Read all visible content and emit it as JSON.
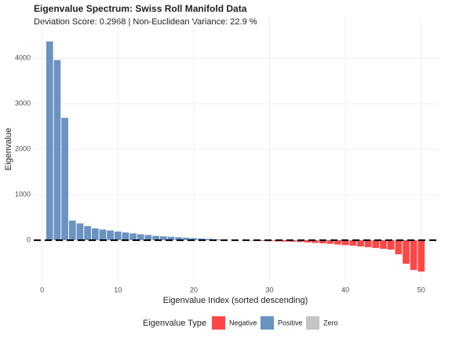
{
  "chart_data": {
    "type": "bar",
    "title": "Eigenvalue Spectrum: Swiss Roll Manifold Data",
    "subtitle": "Deviation Score: 0.2968 | Non-Euclidean Variance: 22.9 %",
    "x_label": "Eigenvalue Index (sorted descending)",
    "y_label": "Eigenvalue",
    "legend_title": "Eigenvalue Type",
    "x": [
      1,
      2,
      3,
      4,
      5,
      6,
      7,
      8,
      9,
      10,
      11,
      12,
      13,
      14,
      15,
      16,
      17,
      18,
      19,
      20,
      21,
      22,
      23,
      24,
      25,
      26,
      27,
      28,
      29,
      30,
      31,
      32,
      33,
      34,
      35,
      36,
      37,
      38,
      39,
      40,
      41,
      42,
      43,
      44,
      45,
      46,
      47,
      48,
      49,
      50
    ],
    "series": [
      {
        "name": "Negative",
        "color": "#ff3333",
        "values": [
          null,
          null,
          null,
          null,
          null,
          null,
          null,
          null,
          null,
          null,
          null,
          null,
          null,
          null,
          null,
          null,
          null,
          null,
          null,
          null,
          null,
          null,
          null,
          null,
          null,
          null,
          -5,
          -10,
          -15,
          -20,
          -25,
          -30,
          -35,
          -40,
          -50,
          -60,
          -70,
          -80,
          -95,
          -110,
          -120,
          -138,
          -155,
          -172,
          -190,
          -207,
          -310,
          -517,
          -655,
          -690
        ]
      },
      {
        "name": "Positive",
        "color": "#5b87ba",
        "values": [
          4370,
          3960,
          2690,
          431,
          370,
          310,
          260,
          235,
          215,
          190,
          170,
          150,
          130,
          115,
          95,
          85,
          75,
          65,
          55,
          45,
          38,
          30,
          20,
          12,
          null,
          null,
          null,
          null,
          null,
          null,
          null,
          null,
          null,
          null,
          null,
          null,
          null,
          null,
          null,
          null,
          null,
          null,
          null,
          null,
          null,
          null,
          null,
          null,
          null,
          null
        ]
      },
      {
        "name": "Zero",
        "color": "#bebebe",
        "values": [
          null,
          null,
          null,
          null,
          null,
          null,
          null,
          null,
          null,
          null,
          null,
          null,
          null,
          null,
          null,
          null,
          null,
          null,
          null,
          null,
          null,
          null,
          null,
          null,
          3,
          -2,
          null,
          null,
          null,
          null,
          null,
          null,
          null,
          null,
          null,
          null,
          null,
          null,
          null,
          null,
          null,
          null,
          null,
          null,
          null,
          null,
          null,
          null,
          null,
          null
        ]
      }
    ],
    "hline": 0,
    "xlim": [
      -1.1,
      52.4
    ],
    "ylim": [
      -930,
      4900
    ],
    "xticks": [
      0,
      10,
      20,
      30,
      40,
      50
    ],
    "yticks": [
      0,
      1000,
      2000,
      3000,
      4000
    ],
    "grid": true,
    "legend": "bottom"
  }
}
